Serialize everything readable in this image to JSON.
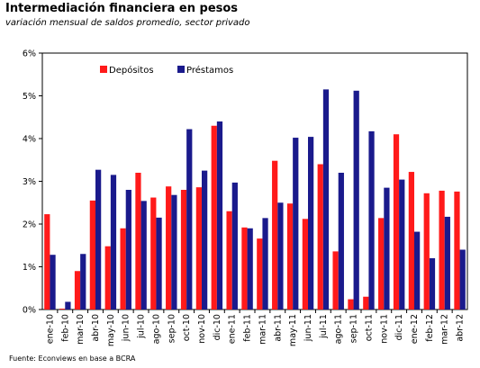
{
  "chart_data": {
    "type": "bar",
    "title": "Intermediación financiera en pesos",
    "subtitle": "variación mensual de saldos promedio, sector privado",
    "source": "Fuente: Econviews en base a BCRA",
    "categories": [
      "ene-10",
      "feb-10",
      "mar-10",
      "abr-10",
      "may-10",
      "jun-10",
      "jul-10",
      "ago-10",
      "sep-10",
      "oct-10",
      "nov-10",
      "dic-10",
      "ene-11",
      "feb-11",
      "mar-11",
      "abr-11",
      "may-11",
      "jun-11",
      "jul-11",
      "ago-11",
      "sep-11",
      "oct-11",
      "nov-11",
      "dic-11",
      "ene-12",
      "feb-12",
      "mar-12",
      "abr-12"
    ],
    "series": [
      {
        "name": "Depósitos",
        "color": "#ff1a1a",
        "values": [
          2.23,
          0.02,
          0.9,
          2.55,
          1.48,
          1.9,
          3.2,
          2.62,
          2.88,
          2.8,
          2.86,
          4.3,
          2.3,
          1.92,
          1.66,
          3.48,
          2.48,
          2.12,
          3.4,
          1.36,
          0.24,
          0.3,
          2.14,
          4.1,
          3.22,
          2.72,
          2.78,
          2.76
        ]
      },
      {
        "name": "Préstamos",
        "color": "#1a1a8c",
        "values": [
          1.28,
          0.18,
          1.3,
          3.27,
          3.15,
          2.8,
          2.54,
          2.15,
          2.68,
          4.22,
          3.25,
          4.4,
          2.97,
          1.9,
          2.14,
          2.5,
          4.02,
          4.04,
          5.15,
          3.2,
          5.12,
          4.17,
          2.85,
          3.04,
          1.82,
          1.2,
          2.17,
          1.4
        ]
      }
    ],
    "ylim": [
      0,
      6
    ],
    "yticks": [
      "0%",
      "1%",
      "2%",
      "3%",
      "4%",
      "5%",
      "6%"
    ],
    "grid": false,
    "legend_position": "top-left"
  }
}
